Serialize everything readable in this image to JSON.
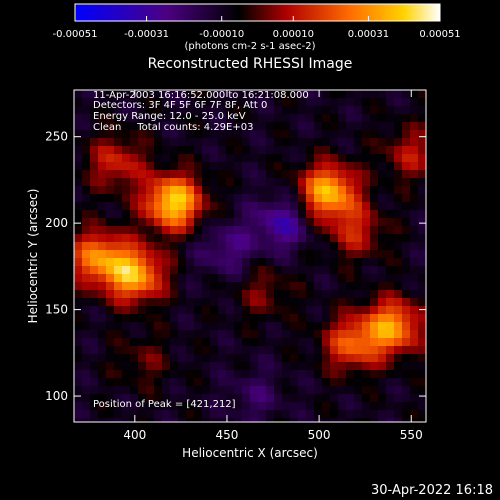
{
  "chart_data": {
    "type": "heatmap",
    "title": "Reconstructed RHESSI Image",
    "xlabel": "Heliocentric X (arcsec)",
    "ylabel": "Heliocentric Y (arcsec)",
    "xlim": [
      367,
      558
    ],
    "ylim": [
      85,
      277
    ],
    "x_ticks": [
      400,
      450,
      500,
      550
    ],
    "y_ticks": [
      100,
      150,
      200,
      250
    ],
    "colorbar": {
      "tick_labels": [
        "-0.00051",
        "-0.00031",
        "-0.00010",
        "0.00010",
        "0.00031",
        "0.00051"
      ],
      "tick_values": [
        -0.00051,
        -0.00031,
        -0.0001,
        0.0001,
        0.00031,
        0.00051
      ],
      "range": [
        -0.00051,
        0.00051
      ],
      "unit_label": "(photons cm-2 s-1 asec-2)",
      "colors": [
        "#0000ff",
        "#4b0082",
        "#000000",
        "#b00000",
        "#ff6a00",
        "#ffd200",
        "#ffffff"
      ]
    },
    "annotations": {
      "time_range": "11-Apr-2003 16:16:52.000 to 16:21:08.000",
      "detectors": "Detectors: 3F 4F 5F 6F 7F 8F, Att 0",
      "energy_range": "Energy Range: 12.0 - 25.0 keV",
      "method_counts": "Clean     Total counts: 4.29E+03",
      "peak": "Position of Peak = [421,212]"
    },
    "hot_spots": [
      {
        "x": 421,
        "y": 212,
        "intensity": 0.00051
      },
      {
        "x": 400,
        "y": 170,
        "intensity": 0.00044
      },
      {
        "x": 380,
        "y": 180,
        "intensity": 0.00036
      },
      {
        "x": 505,
        "y": 218,
        "intensity": 0.00046
      },
      {
        "x": 540,
        "y": 140,
        "intensity": 0.0004
      },
      {
        "x": 518,
        "y": 130,
        "intensity": 0.0003
      },
      {
        "x": 390,
        "y": 235,
        "intensity": 0.00022
      },
      {
        "x": 520,
        "y": 195,
        "intensity": 0.0002
      },
      {
        "x": 550,
        "y": 240,
        "intensity": 0.00018
      },
      {
        "x": 470,
        "y": 160,
        "intensity": 0.00012
      },
      {
        "x": 405,
        "y": 120,
        "intensity": 0.0001
      },
      {
        "x": 480,
        "y": 200,
        "intensity": -0.00022
      },
      {
        "x": 450,
        "y": 185,
        "intensity": -0.00015
      },
      {
        "x": 465,
        "y": 100,
        "intensity": -0.0001
      }
    ]
  },
  "footer": {
    "timestamp": "30-Apr-2022 16:18"
  }
}
